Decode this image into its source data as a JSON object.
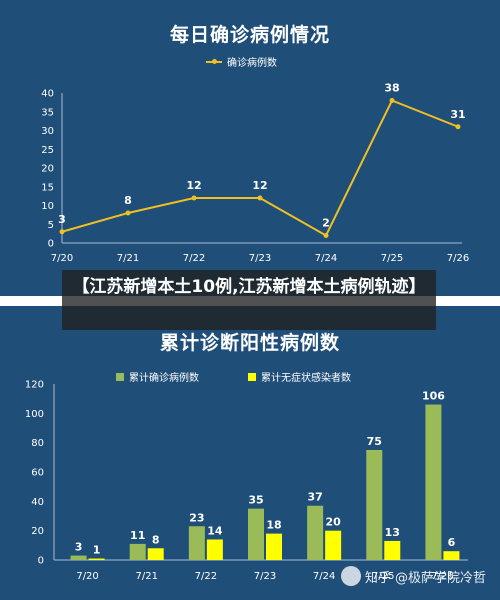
{
  "overlay": {
    "title": "【江苏新增本土10例,江苏新增本土病例轨迹】"
  },
  "watermark": {
    "text": "知乎 @极萨学院冷哲"
  },
  "chart_data": [
    {
      "type": "line",
      "title": "每日确诊病例情况",
      "legend": {
        "position": "top",
        "entries": [
          "确诊病例数"
        ]
      },
      "categories": [
        "7/20",
        "7/21",
        "7/22",
        "7/23",
        "7/24",
        "7/25",
        "7/26"
      ],
      "series": [
        {
          "name": "确诊病例数",
          "values": [
            3,
            8,
            12,
            12,
            2,
            38,
            31
          ],
          "color": "#f0c020"
        }
      ],
      "ylim": [
        0,
        40
      ],
      "yticks": [
        0,
        5,
        10,
        15,
        20,
        25,
        30,
        35,
        40
      ],
      "grid": false
    },
    {
      "type": "bar",
      "title": "累计诊断阳性病例数",
      "legend": {
        "position": "top",
        "entries": [
          "累计确诊病例数",
          "累计无症状感染者数"
        ]
      },
      "categories": [
        "7/20",
        "7/21",
        "7/22",
        "7/23",
        "7/24",
        "7/25",
        "7/26"
      ],
      "series": [
        {
          "name": "累计确诊病例数",
          "values": [
            3,
            11,
            23,
            35,
            37,
            75,
            106
          ],
          "color": "#9bbb59"
        },
        {
          "name": "累计无症状感染者数",
          "values": [
            1,
            8,
            14,
            18,
            20,
            13,
            6
          ],
          "color": "#ffff00"
        }
      ],
      "ylim": [
        0,
        120
      ],
      "yticks": [
        0,
        20,
        40,
        60,
        80,
        100,
        120
      ],
      "grid": false
    }
  ]
}
